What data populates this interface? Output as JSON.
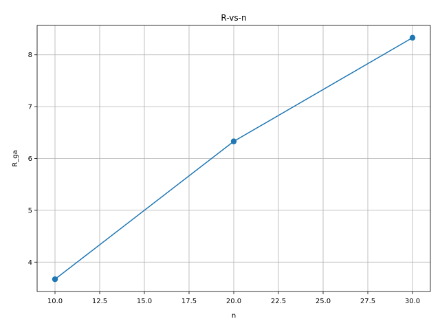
{
  "chart_data": {
    "type": "line",
    "title": "R-vs-n",
    "xlabel": "n",
    "ylabel": "R_ga",
    "x": [
      10,
      20,
      30
    ],
    "series": [
      {
        "values": [
          3.67,
          6.33,
          8.33
        ],
        "color": "#1f77b4",
        "marker": "circle"
      }
    ],
    "xlim": [
      9,
      31
    ],
    "ylim": [
      3.4333,
      8.5667
    ],
    "x_ticks": [
      10.0,
      12.5,
      15.0,
      17.5,
      20.0,
      22.5,
      25.0,
      27.5,
      30.0
    ],
    "x_tick_labels": [
      "10.0",
      "12.5",
      "15.0",
      "17.5",
      "20.0",
      "22.5",
      "25.0",
      "27.5",
      "30.0"
    ],
    "y_ticks": [
      4,
      5,
      6,
      7,
      8
    ],
    "y_tick_labels": [
      "4",
      "5",
      "6",
      "7",
      "8"
    ],
    "grid": true
  }
}
